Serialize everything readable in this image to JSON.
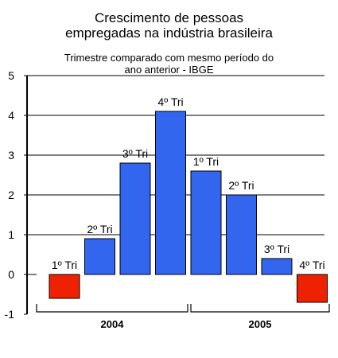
{
  "header": {
    "title_line1": "Crescimento de pessoas",
    "title_line2": "empregadas na indústria brasileira",
    "subtitle_line1": "Trimestre comparado com mesmo período do",
    "subtitle_line2": "ano anterior - IBGE"
  },
  "chart_data": {
    "type": "bar",
    "title": "Crescimento de pessoas empregadas na indústria brasileira",
    "subtitle": "Trimestre comparado com mesmo período do ano anterior - IBGE",
    "categories": [
      "1º Tri",
      "2º Tri",
      "3º Tri",
      "4º Tri",
      "1º Tri",
      "2º Tri",
      "3º Tri",
      "4º Tri"
    ],
    "groups": [
      {
        "label": "2004",
        "categories": [
          "1º Tri",
          "2º Tri",
          "3º Tri",
          "4º Tri"
        ]
      },
      {
        "label": "2005",
        "categories": [
          "1º Tri",
          "2º Tri",
          "3º Tri",
          "4º Tri"
        ]
      }
    ],
    "values": [
      -0.6,
      0.9,
      2.8,
      4.1,
      2.6,
      2.0,
      0.4,
      -0.7
    ],
    "ylim": [
      -1,
      5
    ],
    "yticks": [
      "-1",
      "0",
      "1",
      "2",
      "3",
      "4",
      "5"
    ],
    "grid": true,
    "colors": {
      "positive": "#3366ee",
      "negative": "#ee2200",
      "grid": "#000000"
    }
  }
}
